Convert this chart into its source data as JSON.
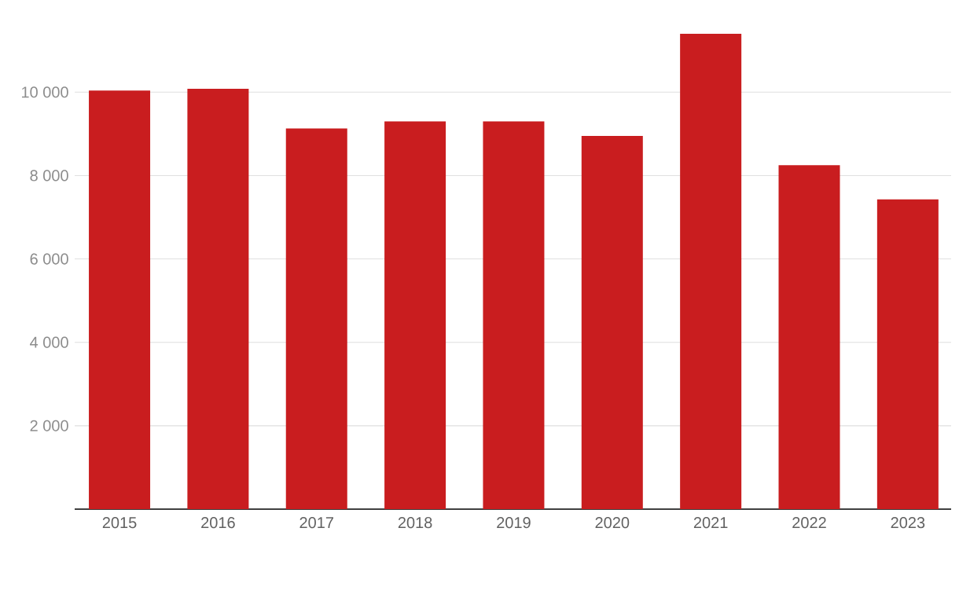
{
  "chart_data": {
    "type": "bar",
    "categories": [
      "2015",
      "2016",
      "2017",
      "2018",
      "2019",
      "2020",
      "2021",
      "2022",
      "2023"
    ],
    "values": [
      10040,
      10080,
      9130,
      9300,
      9300,
      8950,
      11400,
      8250,
      7430
    ],
    "color": "#c91d1f",
    "ylim": [
      0,
      11400
    ],
    "yticks": [
      {
        "value": 2000,
        "label": "2 000"
      },
      {
        "value": 4000,
        "label": "4 000"
      },
      {
        "value": 6000,
        "label": "6 000"
      },
      {
        "value": 8000,
        "label": "8 000"
      },
      {
        "value": 10000,
        "label": "10 000"
      }
    ],
    "grid": "y"
  }
}
